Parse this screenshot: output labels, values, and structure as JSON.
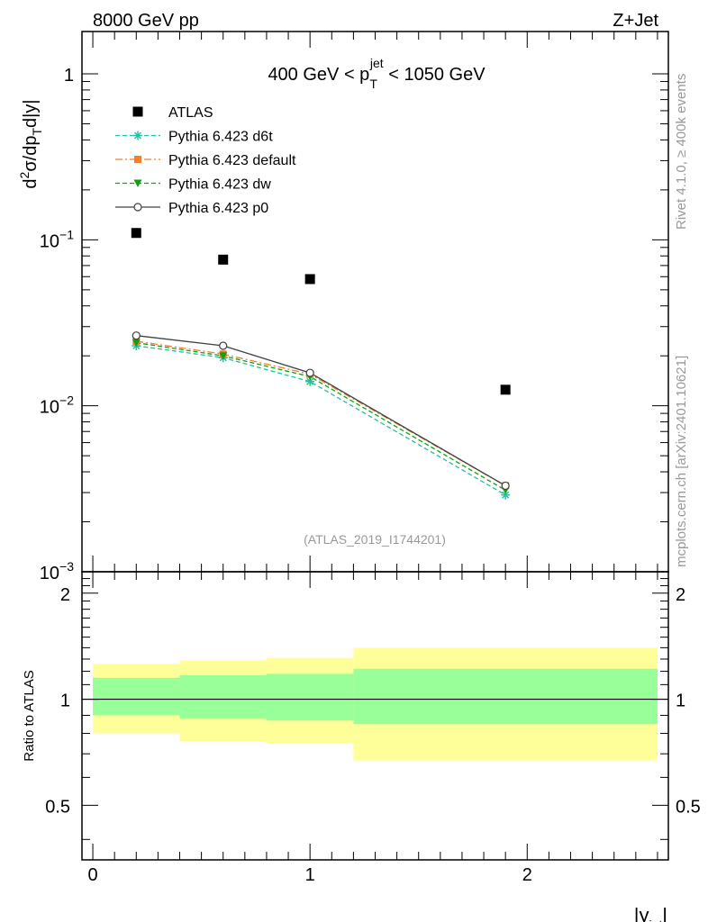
{
  "header": {
    "left": "8000 GeV pp",
    "right": "Z+Jet"
  },
  "side_labels": {
    "rivet": "Rivet 4.1.0, ≥ 400k events",
    "mcplots": "mcplots.cern.ch [arXiv:2401.10621]"
  },
  "chart_data": {
    "type": "line",
    "title": {
      "prefix": "400 GeV < p",
      "sub": "T",
      "sup": "jet",
      "suffix": " < 1050 GeV"
    },
    "ylabel": {
      "d": "d",
      "sup2": "2",
      "sigma": "σ/dp",
      "subT": "T",
      "rest": "d|y|"
    },
    "xlabel": {
      "main": "|y",
      "sub": "jet",
      "close": "|"
    },
    "analysis_id": "(ATLAS_2019_I1744201)",
    "yscale": "log",
    "ylim": [
      0.001,
      1.8
    ],
    "xlim": [
      -0.05,
      2.65
    ],
    "y_tick_labels": {
      "major": [
        {
          "value": 1,
          "base": "1",
          "exp": ""
        },
        {
          "value": 0.1,
          "base": "10",
          "exp": "−1"
        },
        {
          "value": 0.01,
          "base": "10",
          "exp": "−2"
        },
        {
          "value": 0.001,
          "base": "10",
          "exp": "−3"
        }
      ]
    },
    "x": [
      0.2,
      0.6,
      1.0,
      1.9
    ],
    "bin_edges": [
      0,
      0.4,
      0.8,
      1.2,
      2.6
    ],
    "series": [
      {
        "name": "ATLAS",
        "color": "#000000",
        "marker": "square",
        "line": "none",
        "values": [
          0.11,
          0.076,
          0.058,
          0.0125
        ]
      },
      {
        "name": "Pythia 6.423 d6t",
        "color": "#20c0a0",
        "marker": "star",
        "line": "dashed",
        "values": [
          0.023,
          0.0195,
          0.014,
          0.0029
        ]
      },
      {
        "name": "Pythia 6.423 default",
        "color": "#f08030",
        "marker": "filled-square",
        "line": "dashdot",
        "values": [
          0.0245,
          0.0205,
          0.0155,
          0.0033
        ]
      },
      {
        "name": "Pythia 6.423 dw",
        "color": "#10a010",
        "marker": "triangle-down",
        "line": "dashed",
        "values": [
          0.024,
          0.02,
          0.015,
          0.0031
        ]
      },
      {
        "name": "Pythia 6.423 p0",
        "color": "#404040",
        "marker": "open-circle",
        "line": "solid",
        "values": [
          0.0265,
          0.023,
          0.0158,
          0.0033
        ]
      }
    ],
    "ratio": {
      "ylabel": "Ratio to ATLAS",
      "ylim": [
        0.35,
        2.3
      ],
      "y_tick_labels": [
        {
          "value": 2,
          "label": "2"
        },
        {
          "value": 1,
          "label": "1"
        },
        {
          "value": 0.5,
          "label": "0.5"
        }
      ],
      "x_tick_labels": [
        {
          "value": 0,
          "label": "0"
        },
        {
          "value": 1,
          "label": "1"
        },
        {
          "value": 2,
          "label": "2"
        }
      ],
      "bands": [
        {
          "x0": 0.0,
          "x1": 0.4,
          "yellow": [
            0.8,
            1.26
          ],
          "green": [
            0.9,
            1.15
          ]
        },
        {
          "x0": 0.4,
          "x1": 0.8,
          "yellow": [
            0.76,
            1.29
          ],
          "green": [
            0.88,
            1.17
          ]
        },
        {
          "x0": 0.8,
          "x1": 1.2,
          "yellow": [
            0.75,
            1.31
          ],
          "green": [
            0.87,
            1.18
          ]
        },
        {
          "x0": 1.2,
          "x1": 2.6,
          "yellow": [
            0.67,
            1.4
          ],
          "green": [
            0.85,
            1.22
          ]
        }
      ],
      "band_colors": {
        "yellow": "#ffff99",
        "green": "#99ff99"
      }
    }
  }
}
